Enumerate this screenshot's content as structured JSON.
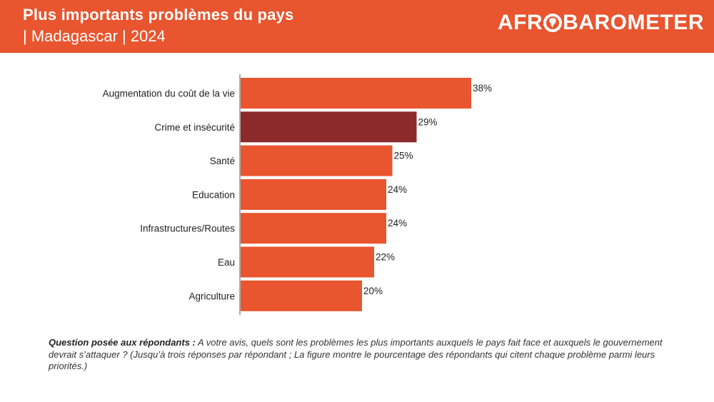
{
  "header": {
    "title": "Plus importants problèmes du pays",
    "subtitle": "| Madagascar | 2024",
    "logo_left": "AFR",
    "logo_right": "BAROMETER"
  },
  "colors": {
    "header_bg": "#e8552e",
    "bar": "#e8552e",
    "bar_highlight": "#8b2a2a",
    "axis": "#555555"
  },
  "chart_data": {
    "type": "bar",
    "orientation": "horizontal",
    "title": "Plus importants problèmes du pays",
    "categories": [
      "Augmentation du coût de la vie",
      "Crime et insécurité",
      "Santé",
      "Education",
      "Infrastructures/Routes",
      "Eau",
      "Agriculture"
    ],
    "values": [
      38,
      29,
      25,
      24,
      24,
      22,
      20
    ],
    "value_labels": [
      "38%",
      "29%",
      "25%",
      "24%",
      "24%",
      "22%",
      "20%"
    ],
    "highlight_index": 1,
    "unit": "%",
    "xlim": [
      0,
      100
    ],
    "grid": false,
    "legend": "none"
  },
  "footnote": {
    "question_label": "Question posée aux répondants :",
    "question_text": " A votre avis, quels sont les problèmes les plus importants auxquels le pays fait face et auxquels le gouvernement devrait s’attaquer ? (Jusqu’à trois réponses par répondant ; La figure montre le pourcentage des répondants qui citent chaque problème parmi leurs priorités.)"
  }
}
